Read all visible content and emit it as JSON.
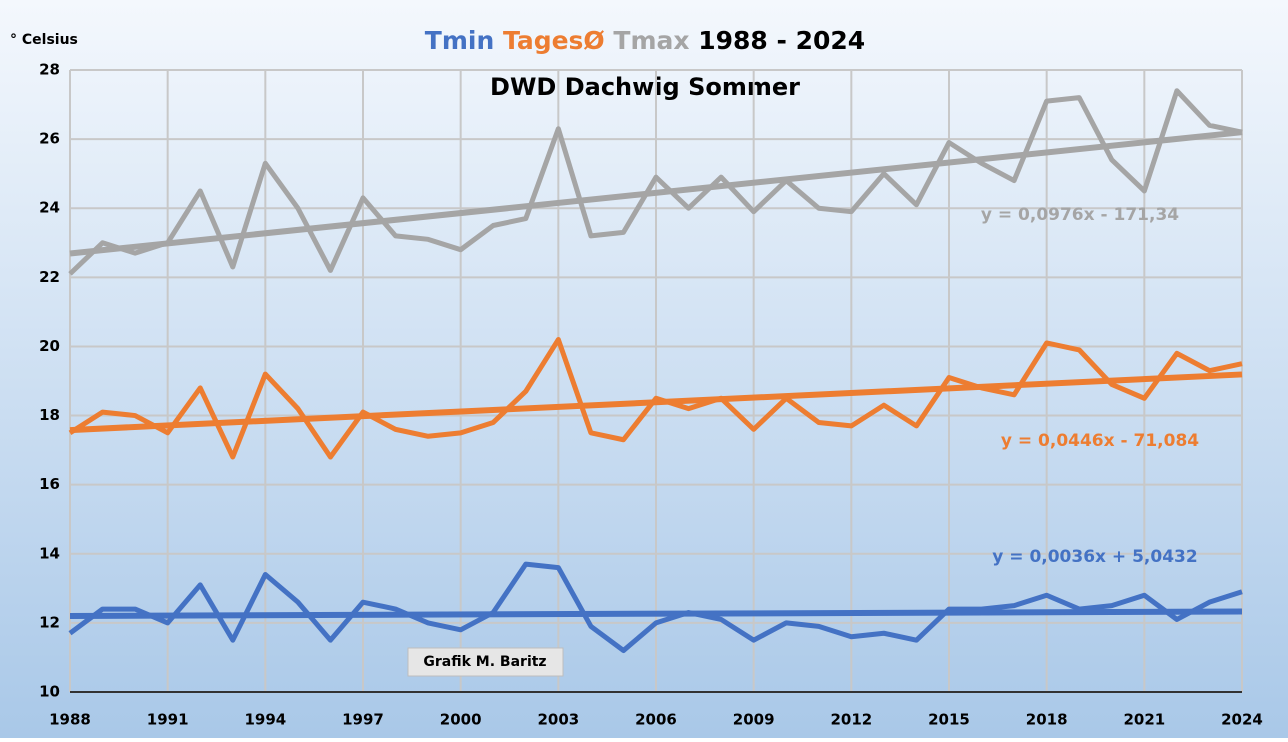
{
  "chart_data": {
    "type": "line",
    "title": "1988 - 2024",
    "subtitle": "DWD Dachwig Sommer",
    "y_label": "° Celsius",
    "annotation": "Grafik M. Baritz",
    "x": [
      1988,
      1989,
      1990,
      1991,
      1992,
      1993,
      1994,
      1995,
      1996,
      1997,
      1998,
      1999,
      2000,
      2001,
      2002,
      2003,
      2004,
      2005,
      2006,
      2007,
      2008,
      2009,
      2010,
      2011,
      2012,
      2013,
      2014,
      2015,
      2016,
      2017,
      2018,
      2019,
      2020,
      2021,
      2022,
      2023,
      2024
    ],
    "xlim": [
      1988,
      2024
    ],
    "xticks": [
      1988,
      1991,
      1994,
      1997,
      2000,
      2003,
      2006,
      2009,
      2012,
      2015,
      2018,
      2021,
      2024
    ],
    "ylim": [
      10,
      28
    ],
    "yticks": [
      10,
      12,
      14,
      16,
      18,
      20,
      22,
      24,
      26,
      28
    ],
    "grid": true,
    "series": [
      {
        "name": "Tmin",
        "color": "#4472c4",
        "values": [
          11.7,
          12.4,
          12.4,
          12.0,
          13.1,
          11.5,
          13.4,
          12.6,
          11.5,
          12.6,
          12.4,
          12.0,
          11.8,
          12.3,
          13.7,
          13.6,
          11.9,
          11.2,
          12.0,
          12.3,
          12.1,
          11.5,
          12.0,
          11.9,
          11.6,
          11.7,
          11.5,
          12.4,
          12.4,
          12.5,
          12.8,
          12.4,
          12.5,
          12.8,
          12.1,
          12.6,
          12.9
        ],
        "trend": {
          "x": [
            1988,
            2024
          ],
          "values": [
            12.2,
            12.33
          ]
        },
        "trend_label": "y = 0,0036x + 5,0432"
      },
      {
        "name": "TagesØ",
        "color": "#ed7d31",
        "values": [
          17.5,
          18.1,
          18.0,
          17.5,
          18.8,
          16.8,
          19.2,
          18.2,
          16.8,
          18.1,
          17.6,
          17.4,
          17.5,
          17.8,
          18.7,
          20.2,
          17.5,
          17.3,
          18.5,
          18.2,
          18.5,
          17.6,
          18.5,
          17.8,
          17.7,
          18.3,
          17.7,
          19.1,
          18.8,
          18.6,
          20.1,
          19.9,
          18.9,
          18.5,
          19.8,
          19.3,
          19.5
        ],
        "trend": {
          "x": [
            1988,
            2024
          ],
          "values": [
            17.58,
            19.19
          ]
        },
        "trend_label": "y = 0,0446x - 71,084"
      },
      {
        "name": "Tmax",
        "color": "#a5a5a5",
        "values": [
          22.1,
          23.0,
          22.7,
          23.0,
          24.5,
          22.3,
          25.3,
          24.0,
          22.2,
          24.3,
          23.2,
          23.1,
          22.8,
          23.5,
          23.7,
          26.3,
          23.2,
          23.3,
          24.9,
          24.0,
          24.9,
          23.9,
          24.8,
          24.0,
          23.9,
          25.0,
          24.1,
          25.9,
          25.3,
          24.8,
          27.1,
          27.2,
          25.4,
          24.5,
          27.4,
          26.4,
          26.2
        ],
        "trend": {
          "x": [
            1988,
            2024
          ],
          "values": [
            22.69,
            26.2
          ]
        },
        "trend_label": "y = 0,0976x - 171,34"
      }
    ]
  }
}
